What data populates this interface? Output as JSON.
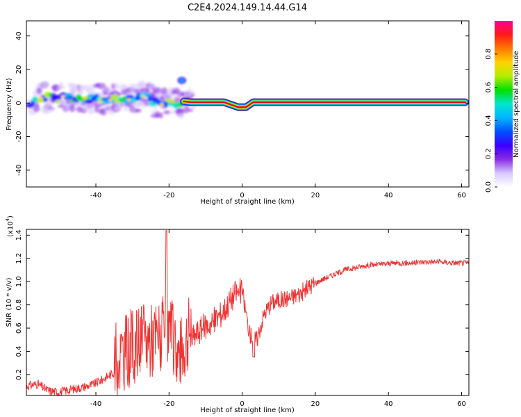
{
  "title": "C2E4.2024.149.14.44.G14",
  "colors": {
    "line": "#ee3333",
    "frame": "#000000",
    "ridge_core": "#e60020",
    "colormap": [
      "#ffffff",
      "#d8c8ff",
      "#8a2be2",
      "#3a00ff",
      "#0050ff",
      "#00b5ff",
      "#00e5d0",
      "#00e000",
      "#b4ee00",
      "#ffd200",
      "#ff7a00",
      "#ff1a1a",
      "#ff0090"
    ]
  },
  "chart_data": [
    {
      "type": "heatmap",
      "xlabel": "Height of straight line (km)",
      "ylabel": "Frequency (Hz)",
      "xlim": [
        -59,
        62
      ],
      "ylim": [
        -50,
        49
      ],
      "xticks": [
        -40,
        -20,
        0,
        20,
        40,
        60
      ],
      "yticks": [
        40,
        20,
        0,
        -20,
        -40
      ],
      "colorbar": {
        "label": "Normalized spectral amplitude",
        "range": [
          0.0,
          1.0
        ],
        "ticks": [
          0.0,
          0.2,
          0.4,
          0.6,
          0.8
        ]
      },
      "ridge": [
        [
          -57,
          3
        ],
        [
          -54,
          3.5
        ],
        [
          -51,
          2.5
        ],
        [
          -48,
          4
        ],
        [
          -45,
          3
        ],
        [
          -42,
          2.5
        ],
        [
          -39,
          3
        ],
        [
          -36,
          2
        ],
        [
          -33,
          3
        ],
        [
          -30,
          2
        ],
        [
          -28,
          4
        ],
        [
          -26,
          5
        ],
        [
          -24,
          0
        ],
        [
          -22,
          -1
        ],
        [
          -20,
          1
        ],
        [
          -18,
          0
        ],
        [
          -16,
          1
        ],
        [
          -14,
          0.5
        ],
        [
          -10,
          0.5
        ],
        [
          -5,
          0.5
        ],
        [
          -1,
          -2.5
        ],
        [
          1,
          -2.5
        ],
        [
          3,
          0.5
        ],
        [
          10,
          0.5
        ],
        [
          20,
          0.5
        ],
        [
          30,
          0.5
        ],
        [
          40,
          0.5
        ],
        [
          50,
          0.5
        ],
        [
          61,
          0.5
        ]
      ],
      "blob": [
        -16.5,
        13.5
      ]
    },
    {
      "type": "line",
      "xlabel": "Height of straight line (km)",
      "ylabel": "SNR (10 * v/v)",
      "ylabel_scale": "(x10",
      "ylabel_scale_exp": "4",
      "scale_multiplier": 10000,
      "xlim": [
        -59,
        62
      ],
      "ylim": [
        0.02,
        1.45
      ],
      "xticks": [
        -40,
        -20,
        0,
        20,
        40,
        60
      ],
      "yticks": [
        0.2,
        0.4,
        0.6,
        0.8,
        1.0,
        1.2,
        1.4
      ],
      "x": [
        -59,
        -56,
        -53,
        -50,
        -47,
        -44,
        -41,
        -38,
        -35,
        -32,
        -29,
        -26,
        -23,
        -20,
        -17,
        -14,
        -11,
        -8,
        -5,
        -2,
        0,
        2,
        4,
        6,
        8,
        10,
        13,
        16,
        19,
        22,
        25,
        28,
        31,
        34,
        38,
        42,
        46,
        50,
        54,
        58,
        62
      ],
      "y": [
        0.1,
        0.12,
        0.06,
        0.05,
        0.07,
        0.09,
        0.11,
        0.16,
        0.22,
        0.3,
        0.36,
        0.4,
        0.42,
        0.48,
        0.25,
        0.5,
        0.6,
        0.65,
        0.75,
        0.9,
        0.92,
        0.55,
        0.5,
        0.72,
        0.82,
        0.84,
        0.86,
        0.9,
        0.97,
        1.02,
        1.06,
        1.1,
        1.12,
        1.14,
        1.15,
        1.16,
        1.16,
        1.17,
        1.17,
        1.16,
        1.16
      ]
    }
  ]
}
